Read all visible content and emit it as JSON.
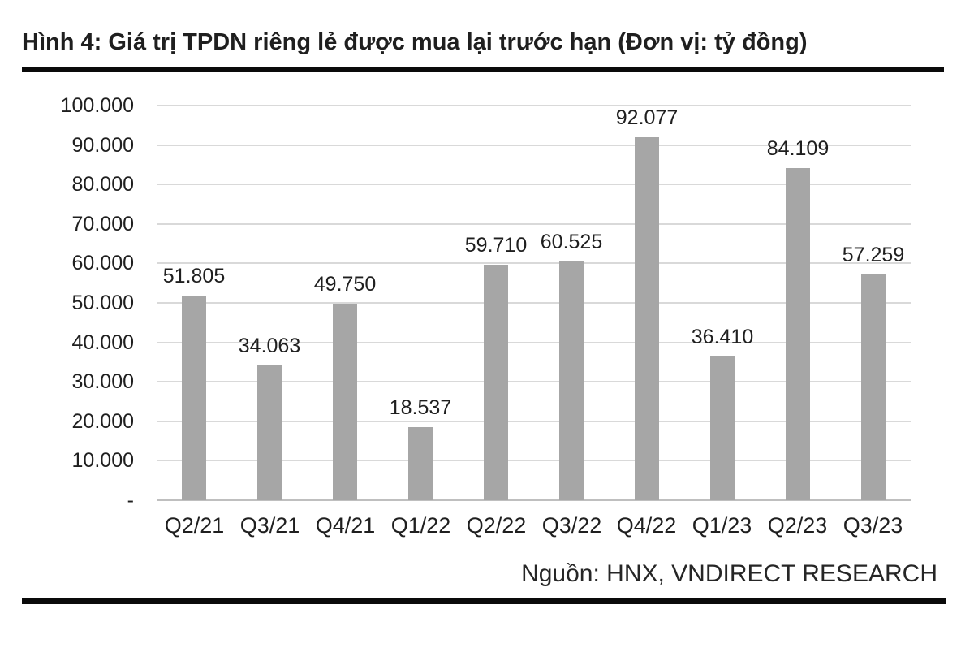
{
  "header": {
    "title": "Hình 4: Giá trị TPDN riêng lẻ được mua lại trước hạn (Đơn vị: tỷ đồng)"
  },
  "footer": {
    "source": "Nguồn: HNX, VNDIRECT RESEARCH"
  },
  "colors": {
    "bar": "#a6a6a6",
    "gridline": "#d9d9d9",
    "axis_line": "#bfbfbf",
    "text": "#1f1f1f",
    "rule": "#0a0a0a"
  },
  "chart_data": {
    "type": "bar",
    "title": "Hình 4: Giá trị TPDN riêng lẻ được mua lại trước hạn (Đơn vị: tỷ đồng)",
    "xlabel": "",
    "ylabel": "",
    "unit_note": "Đơn vị: tỷ đồng",
    "categories": [
      "Q2/21",
      "Q3/21",
      "Q4/21",
      "Q1/22",
      "Q2/22",
      "Q3/22",
      "Q4/22",
      "Q1/23",
      "Q2/23",
      "Q3/23"
    ],
    "values": [
      51805,
      34063,
      49750,
      18537,
      59710,
      60525,
      92077,
      36410,
      84109,
      57259
    ],
    "value_labels": [
      "51.805",
      "34.063",
      "49.750",
      "18.537",
      "59.710",
      "60.525",
      "92.077",
      "36.410",
      "84.109",
      "57.259"
    ],
    "ylim": [
      0,
      100000
    ],
    "y_tick_step": 10000,
    "y_tick_labels_top_to_bottom": [
      "100.000",
      "90.000",
      "80.000",
      "70.000",
      "60.000",
      "50.000",
      "40.000",
      "30.000",
      "20.000",
      "10.000",
      "-"
    ],
    "grid": true,
    "legend": false,
    "source": "Nguồn: HNX, VNDIRECT RESEARCH"
  }
}
